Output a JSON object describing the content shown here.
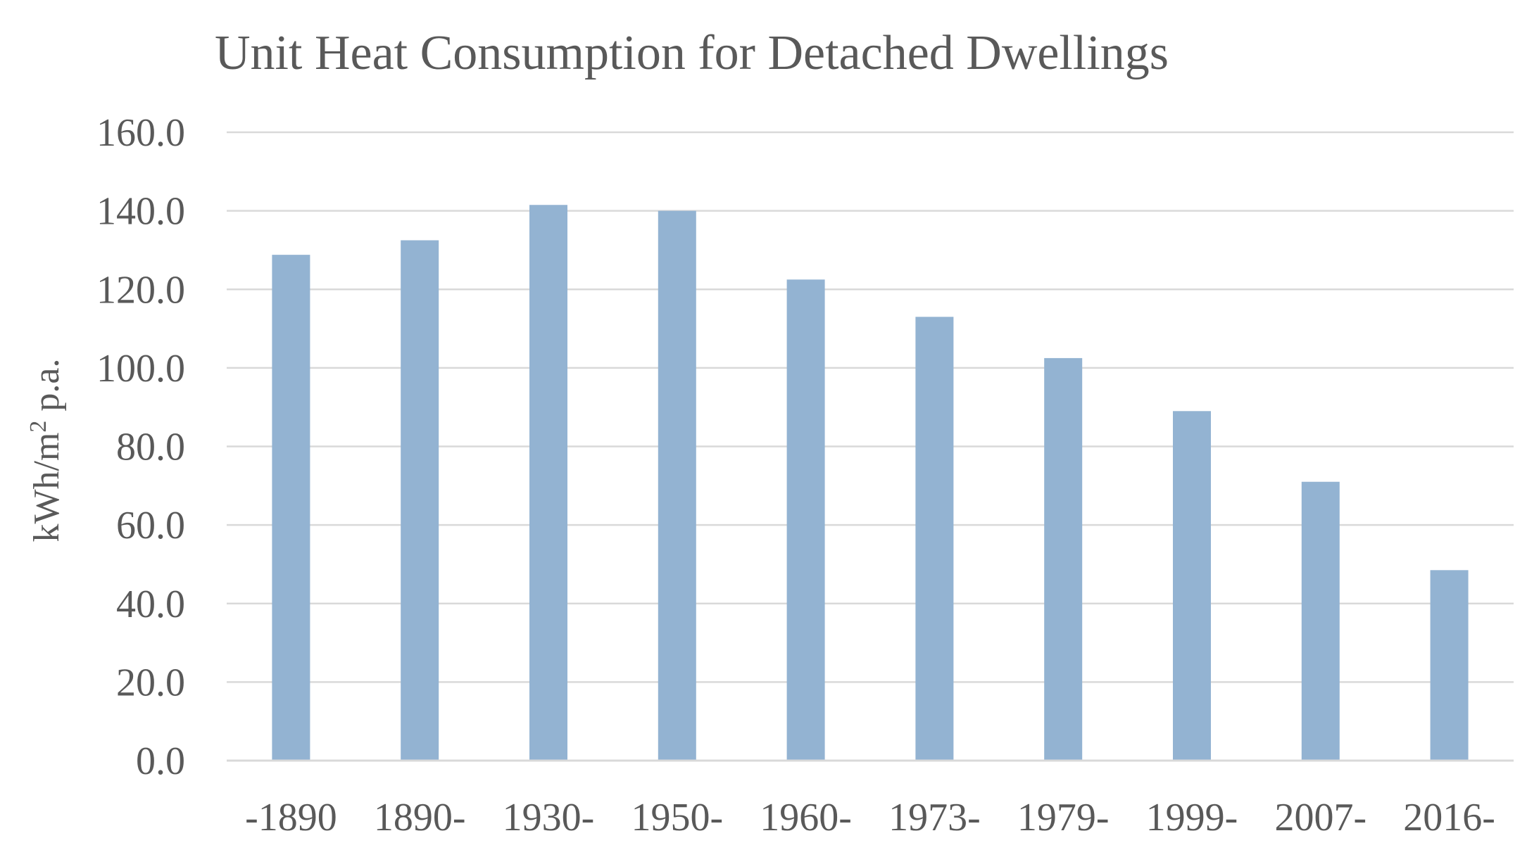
{
  "chart_data": {
    "type": "bar",
    "title": "Unit Heat Consumption for Detached Dwellings",
    "xlabel": "",
    "ylabel_prefix": "kWh/m",
    "ylabel_superscript": "2",
    "ylabel_suffix": " p.a.",
    "categories": [
      "-1890",
      "1890-",
      "1930-",
      "1950-",
      "1960-",
      "1973-",
      "1979-",
      "1999-",
      "2007-",
      "2016-"
    ],
    "values": [
      128.8,
      132.5,
      141.5,
      140.0,
      122.5,
      113.0,
      102.5,
      89.0,
      71.0,
      48.5
    ],
    "ylim": [
      0,
      160
    ],
    "yticks": [
      "0.0",
      "20.0",
      "40.0",
      "60.0",
      "80.0",
      "100.0",
      "120.0",
      "140.0",
      "160.0"
    ],
    "bar_color": "#93b3d2",
    "grid": true,
    "legend": "none"
  }
}
